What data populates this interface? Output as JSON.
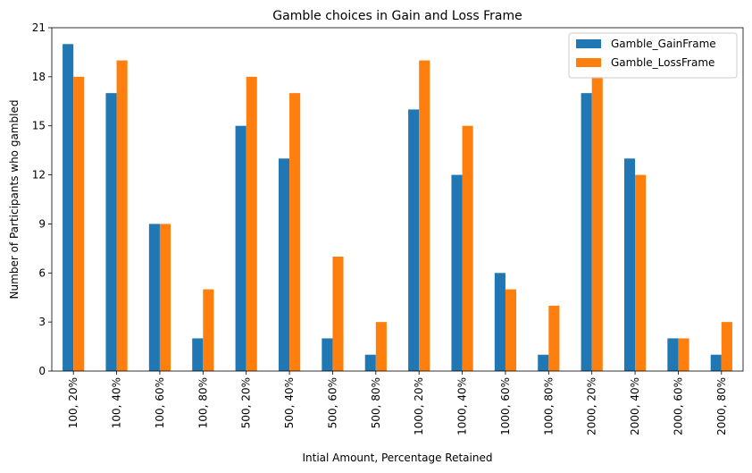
{
  "chart_data": {
    "type": "bar",
    "title": "Gamble choices in Gain and Loss Frame",
    "xlabel": "Intial Amount, Percentage Retained",
    "ylabel": "Number of Participants who gambled",
    "ylim": [
      0,
      21
    ],
    "yticks": [
      "0",
      "3",
      "6",
      "9",
      "12",
      "15",
      "18",
      "21"
    ],
    "grid": false,
    "legend_position": "top-right",
    "categories": [
      "100, 20%",
      "100, 40%",
      "100, 60%",
      "100, 80%",
      "500, 20%",
      "500, 40%",
      "500, 60%",
      "500, 80%",
      "1000, 20%",
      "1000, 40%",
      "1000, 60%",
      "1000, 80%",
      "2000, 20%",
      "2000, 40%",
      "2000, 60%",
      "2000, 80%"
    ],
    "series": [
      {
        "name": "Gamble_GainFrame",
        "color": "#1f77b4",
        "values": [
          20,
          17,
          9,
          2,
          15,
          13,
          2,
          1,
          16,
          12,
          6,
          1,
          17,
          13,
          2,
          1
        ]
      },
      {
        "name": "Gamble_LossFrame",
        "color": "#ff7f0e",
        "values": [
          18,
          19,
          9,
          5,
          18,
          17,
          7,
          3,
          19,
          15,
          5,
          4,
          18,
          12,
          2,
          3
        ]
      }
    ]
  }
}
